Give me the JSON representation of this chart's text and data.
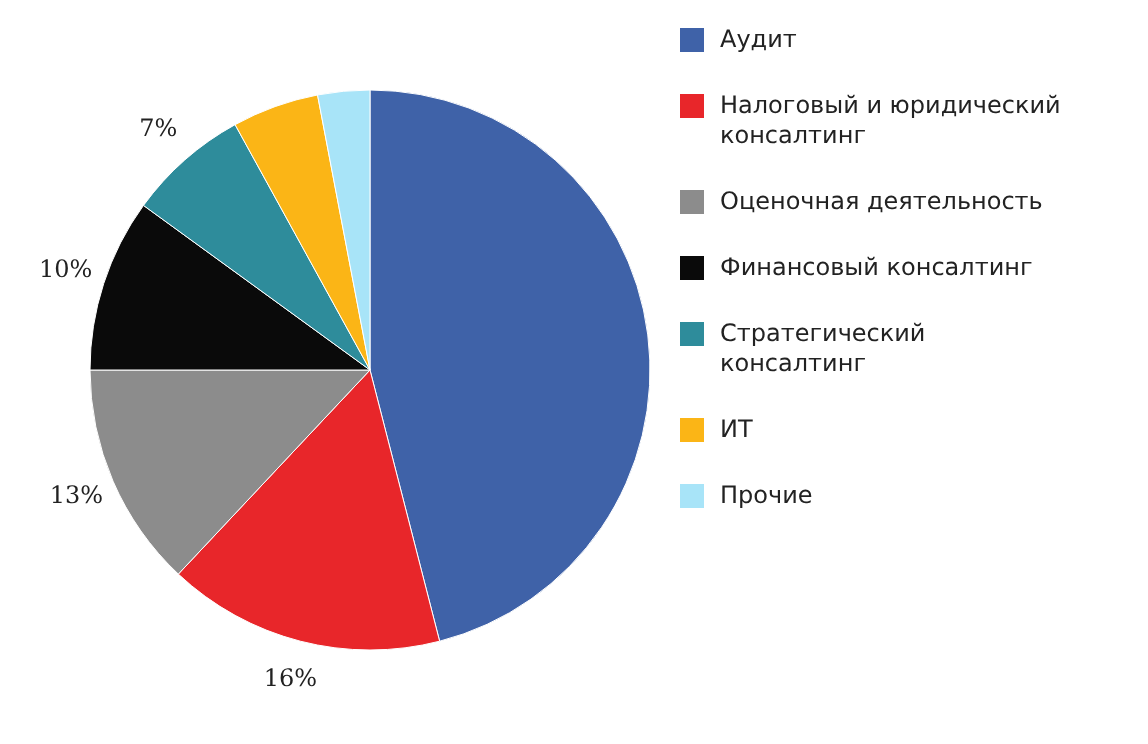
{
  "chart_data": {
    "type": "pie",
    "categories": [
      "Аудит",
      "Налоговый и юридический консалтинг",
      "Оценочная деятельность",
      "Финансовый консалтинг",
      "Стратегический консалтинг",
      "ИТ",
      "Прочие"
    ],
    "values": [
      46,
      16,
      13,
      10,
      7,
      5,
      3
    ],
    "colors": [
      "#3f62a8",
      "#e8262a",
      "#8c8c8c",
      "#0a0a0a",
      "#2e8c9b",
      "#fbb516",
      "#a8e4f8"
    ],
    "value_labels": [
      null,
      "16%",
      "13%",
      "10%",
      "7%",
      null,
      null
    ],
    "legend": "right"
  }
}
